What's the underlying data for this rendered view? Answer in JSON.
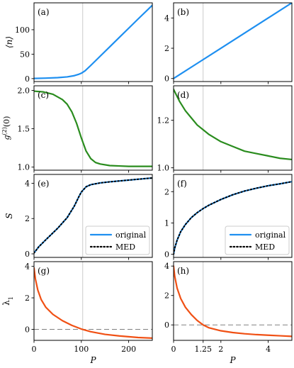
{
  "figure": {
    "x_label": "P",
    "legend": {
      "original": "original",
      "med": "MED"
    }
  },
  "colors": {
    "blue": "#1e8ff0",
    "green": "#2a8c1e",
    "orange": "#f05014",
    "vline": "#bdbdbd",
    "dashed": "#808080"
  },
  "chart_data": [
    {
      "panel": "(a)",
      "type": "line",
      "column": "left",
      "row": 0,
      "ylabel": "⟨n⟩",
      "xlim": [
        0,
        250
      ],
      "ylim": [
        -6,
        155
      ],
      "yticks": [
        0,
        50,
        100
      ],
      "xticks": [
        0,
        100,
        200
      ],
      "vline": 103,
      "series": [
        {
          "color": "blue",
          "style": "solid",
          "x": [
            0,
            25,
            50,
            70,
            85,
            95,
            100,
            108,
            120,
            140,
            160,
            180,
            200,
            220,
            250
          ],
          "y": [
            0.4,
            1,
            2,
            3.5,
            6,
            9,
            11,
            16,
            27,
            46,
            65,
            84,
            103,
            122,
            150
          ]
        }
      ]
    },
    {
      "panel": "(b)",
      "type": "line",
      "column": "right",
      "row": 0,
      "ylabel": "",
      "xlim": [
        0,
        5
      ],
      "ylim": [
        -0.2,
        5
      ],
      "yticks": [
        0,
        2,
        4
      ],
      "xticks": [
        0,
        2,
        4
      ],
      "vline": 1.25,
      "series": [
        {
          "color": "blue",
          "style": "solid",
          "x": [
            0,
            1,
            2,
            3,
            4,
            5
          ],
          "y": [
            0,
            1,
            2,
            3,
            4,
            5
          ]
        }
      ]
    },
    {
      "panel": "(c)",
      "type": "line",
      "column": "left",
      "row": 1,
      "ylabel": "g(2)(0)",
      "xlim": [
        0,
        250
      ],
      "ylim": [
        0.96,
        2.06
      ],
      "yticks": [
        1.0,
        1.5,
        2.0
      ],
      "xticks": [
        0,
        100,
        200
      ],
      "vline": 103,
      "series": [
        {
          "color": "green",
          "style": "solid",
          "x": [
            0,
            20,
            40,
            60,
            70,
            80,
            90,
            100,
            110,
            120,
            130,
            140,
            160,
            180,
            200,
            250
          ],
          "y": [
            1.99,
            1.98,
            1.95,
            1.88,
            1.82,
            1.72,
            1.57,
            1.38,
            1.21,
            1.11,
            1.06,
            1.04,
            1.02,
            1.015,
            1.01,
            1.01
          ]
        }
      ]
    },
    {
      "panel": "(d)",
      "type": "line",
      "column": "right",
      "row": 1,
      "ylabel": "",
      "xlim": [
        0,
        5
      ],
      "ylim": [
        0.99,
        1.345
      ],
      "yticks": [
        1.0,
        1.2
      ],
      "xticks": [
        0,
        2,
        4
      ],
      "vline": 1.25,
      "series": [
        {
          "color": "green",
          "style": "solid",
          "x": [
            0,
            0.1,
            0.25,
            0.5,
            0.75,
            1.0,
            1.25,
            1.5,
            2.0,
            2.5,
            3.0,
            3.5,
            4.0,
            4.5,
            5.0
          ],
          "y": [
            1.33,
            1.31,
            1.28,
            1.24,
            1.21,
            1.18,
            1.16,
            1.14,
            1.11,
            1.09,
            1.07,
            1.06,
            1.05,
            1.04,
            1.035
          ]
        }
      ]
    },
    {
      "panel": "(e)",
      "type": "line",
      "column": "left",
      "row": 2,
      "ylabel": "S",
      "xlim": [
        0,
        250
      ],
      "ylim": [
        -0.2,
        4.5
      ],
      "yticks": [
        0,
        2,
        4
      ],
      "xticks": [
        0,
        100,
        200
      ],
      "vline": 103,
      "legend": "lower right",
      "series": [
        {
          "name": "original",
          "color": "blue",
          "style": "solid",
          "x": [
            0,
            10,
            25,
            50,
            70,
            85,
            95,
            100,
            110,
            120,
            140,
            160,
            200,
            250
          ],
          "y": [
            0.05,
            0.4,
            0.8,
            1.45,
            2.05,
            2.7,
            3.25,
            3.5,
            3.8,
            3.92,
            4.02,
            4.08,
            4.18,
            4.3
          ]
        },
        {
          "name": "MED",
          "color": "black",
          "style": "dotted",
          "x": [
            0,
            10,
            25,
            50,
            70,
            85,
            95,
            100,
            110,
            120,
            140,
            160,
            200,
            250
          ],
          "y": [
            0.05,
            0.4,
            0.8,
            1.45,
            2.05,
            2.7,
            3.25,
            3.5,
            3.8,
            3.92,
            4.02,
            4.08,
            4.18,
            4.3
          ]
        }
      ]
    },
    {
      "panel": "(f)",
      "type": "line",
      "column": "right",
      "row": 2,
      "ylabel": "",
      "xlim": [
        0,
        5
      ],
      "ylim": [
        -0.1,
        2.55
      ],
      "yticks": [
        0,
        1,
        2
      ],
      "xticks": [
        0,
        2,
        4
      ],
      "vline": 1.25,
      "legend": "lower right",
      "series": [
        {
          "name": "original",
          "color": "blue",
          "style": "solid",
          "x": [
            0,
            0.05,
            0.15,
            0.3,
            0.5,
            0.75,
            1.0,
            1.25,
            1.5,
            2.0,
            2.5,
            3.0,
            3.5,
            4.0,
            4.5,
            5.0
          ],
          "y": [
            0,
            0.2,
            0.45,
            0.72,
            0.95,
            1.17,
            1.33,
            1.46,
            1.57,
            1.75,
            1.9,
            2.02,
            2.11,
            2.19,
            2.25,
            2.32
          ]
        },
        {
          "name": "MED",
          "color": "black",
          "style": "dotted",
          "x": [
            0,
            0.05,
            0.15,
            0.3,
            0.5,
            0.75,
            1.0,
            1.25,
            1.5,
            2.0,
            2.5,
            3.0,
            3.5,
            4.0,
            4.5,
            5.0
          ],
          "y": [
            0,
            0.2,
            0.45,
            0.72,
            0.95,
            1.17,
            1.33,
            1.46,
            1.57,
            1.75,
            1.9,
            2.02,
            2.11,
            2.19,
            2.25,
            2.32
          ]
        }
      ]
    },
    {
      "panel": "(g)",
      "type": "line",
      "column": "left",
      "row": 3,
      "ylabel": "λ1",
      "xlim": [
        0,
        250
      ],
      "ylim": [
        -0.7,
        4.3
      ],
      "yticks": [
        0,
        2,
        4
      ],
      "xticks": [
        0,
        100,
        200
      ],
      "xticklabels": [
        "0",
        "100",
        "200"
      ],
      "vline": 103,
      "hline": 0,
      "series": [
        {
          "color": "orange",
          "style": "solid",
          "x": [
            0,
            3,
            8,
            15,
            25,
            40,
            60,
            80,
            100,
            120,
            150,
            180,
            220,
            250
          ],
          "y": [
            3.9,
            3.2,
            2.5,
            1.9,
            1.4,
            0.95,
            0.55,
            0.25,
            0.02,
            -0.15,
            -0.32,
            -0.42,
            -0.52,
            -0.56
          ]
        }
      ]
    },
    {
      "panel": "(h)",
      "type": "line",
      "column": "right",
      "row": 3,
      "ylabel": "",
      "xlim": [
        0,
        5
      ],
      "ylim": [
        -1.05,
        4.3
      ],
      "yticks": [
        0,
        2,
        4
      ],
      "xticks": [
        0,
        1.25,
        2,
        4
      ],
      "xticklabels": [
        "0",
        "1.25",
        "2",
        "4"
      ],
      "vline": 1.25,
      "hline": 0,
      "series": [
        {
          "color": "orange",
          "style": "solid",
          "x": [
            0,
            0.05,
            0.15,
            0.3,
            0.5,
            0.75,
            1.0,
            1.25,
            1.5,
            2.0,
            2.5,
            3.0,
            3.5,
            4.0,
            4.5,
            5.0
          ],
          "y": [
            4.0,
            3.3,
            2.5,
            1.8,
            1.2,
            0.7,
            0.3,
            0.0,
            -0.2,
            -0.4,
            -0.52,
            -0.6,
            -0.66,
            -0.7,
            -0.74,
            -0.78
          ]
        }
      ]
    }
  ]
}
